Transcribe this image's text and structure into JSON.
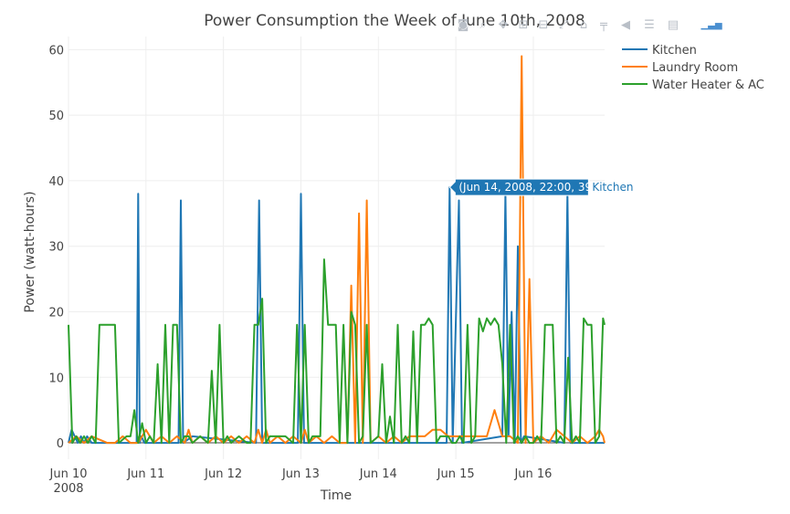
{
  "chart_data": {
    "type": "line",
    "title": "Power Consumption the Week of June 10th, 2008",
    "xlabel": "Time",
    "ylabel": "Power (watt-hours)",
    "ylim": [
      -2.5,
      62
    ],
    "yticks": [
      0,
      10,
      20,
      30,
      40,
      50,
      60
    ],
    "xlim": [
      0,
      6.92
    ],
    "xticks": [
      {
        "pos": 0,
        "label": "Jun 10",
        "sub": "2008"
      },
      {
        "pos": 1,
        "label": "Jun 11"
      },
      {
        "pos": 2,
        "label": "Jun 12"
      },
      {
        "pos": 3,
        "label": "Jun 13"
      },
      {
        "pos": 4,
        "label": "Jun 14"
      },
      {
        "pos": 5,
        "label": "Jun 15"
      },
      {
        "pos": 6,
        "label": "Jun 16"
      }
    ],
    "grid": true,
    "legend_position": "top-right",
    "series": [
      {
        "name": "Kitchen",
        "color": "#1f77b4",
        "x": [
          0,
          0.04,
          0.08,
          0.12,
          0.16,
          0.2,
          0.24,
          0.3,
          0.88,
          0.9,
          0.92,
          0.94,
          0.98,
          1.42,
          1.45,
          1.48,
          1.6,
          2.42,
          2.46,
          2.5,
          2.96,
          3.0,
          3.04,
          4.88,
          4.92,
          4.96,
          5.04,
          5.08,
          5.6,
          5.64,
          5.68,
          5.72,
          5.76,
          5.8,
          5.84,
          5.88,
          6.4,
          6.44,
          6.48,
          6.92
        ],
        "y": [
          0,
          2,
          1,
          0,
          1,
          0,
          1,
          0,
          0,
          38,
          0,
          1,
          0,
          0,
          37,
          0,
          1,
          0,
          37,
          0,
          0,
          38,
          0,
          0,
          39,
          0,
          37,
          0,
          1,
          38,
          1,
          20,
          0,
          30,
          0,
          1,
          0,
          38,
          0,
          0
        ]
      },
      {
        "name": "Laundry Room",
        "color": "#ff7f0e",
        "x": [
          0,
          0.1,
          0.2,
          0.3,
          0.5,
          0.6,
          0.7,
          0.8,
          0.9,
          1.0,
          1.1,
          1.2,
          1.3,
          1.4,
          1.5,
          1.55,
          1.6,
          1.7,
          1.8,
          1.9,
          2.0,
          2.1,
          2.2,
          2.3,
          2.4,
          2.45,
          2.5,
          2.55,
          2.6,
          2.7,
          2.8,
          2.9,
          3.0,
          3.05,
          3.1,
          3.2,
          3.3,
          3.4,
          3.5,
          3.6,
          3.65,
          3.7,
          3.75,
          3.8,
          3.85,
          3.9,
          4.0,
          4.1,
          4.2,
          4.3,
          4.4,
          4.5,
          4.6,
          4.7,
          4.8,
          4.9,
          5.0,
          5.1,
          5.2,
          5.3,
          5.4,
          5.5,
          5.6,
          5.7,
          5.8,
          5.85,
          5.9,
          5.95,
          6.0,
          6.1,
          6.2,
          6.3,
          6.4,
          6.5,
          6.6,
          6.7,
          6.8,
          6.85,
          6.9,
          6.92
        ],
        "y": [
          0,
          1,
          0,
          1,
          0,
          0,
          1,
          0,
          0,
          2,
          0,
          1,
          0,
          1,
          0,
          2,
          0,
          1,
          0,
          1,
          0,
          1,
          0,
          1,
          0,
          2,
          0,
          2,
          0,
          1,
          0,
          1,
          0,
          2,
          0,
          1,
          0,
          1,
          0,
          0,
          24,
          0,
          35,
          0,
          37,
          0,
          1,
          0,
          1,
          0,
          1,
          1,
          1,
          2,
          2,
          1,
          1,
          1,
          1,
          1,
          1,
          5,
          1,
          1,
          0,
          59,
          0,
          25,
          0,
          1,
          0,
          2,
          1,
          0,
          1,
          0,
          1,
          2,
          1,
          0
        ]
      },
      {
        "name": "Water Heater & AC",
        "color": "#2ca02c",
        "x": [
          0,
          0.05,
          0.1,
          0.15,
          0.2,
          0.25,
          0.3,
          0.35,
          0.4,
          0.5,
          0.6,
          0.65,
          0.75,
          0.8,
          0.85,
          0.9,
          0.95,
          1.0,
          1.05,
          1.1,
          1.15,
          1.2,
          1.25,
          1.3,
          1.35,
          1.4,
          1.45,
          1.5,
          1.55,
          1.6,
          1.7,
          1.8,
          1.85,
          1.9,
          1.95,
          2.0,
          2.05,
          2.1,
          2.2,
          2.3,
          2.35,
          2.4,
          2.45,
          2.5,
          2.55,
          2.6,
          2.65,
          2.7,
          2.8,
          2.9,
          2.95,
          3.0,
          3.05,
          3.1,
          3.15,
          3.2,
          3.25,
          3.3,
          3.35,
          3.4,
          3.45,
          3.5,
          3.55,
          3.6,
          3.65,
          3.7,
          3.75,
          3.8,
          3.85,
          3.9,
          4.0,
          4.05,
          4.1,
          4.15,
          4.2,
          4.25,
          4.3,
          4.35,
          4.4,
          4.45,
          4.5,
          4.55,
          4.6,
          4.65,
          4.7,
          4.75,
          4.8,
          4.85,
          4.9,
          4.95,
          5.0,
          5.05,
          5.1,
          5.15,
          5.2,
          5.25,
          5.3,
          5.35,
          5.4,
          5.45,
          5.5,
          5.55,
          5.6,
          5.65,
          5.7,
          5.75,
          5.8,
          5.85,
          5.9,
          5.95,
          6.0,
          6.05,
          6.1,
          6.15,
          6.2,
          6.25,
          6.3,
          6.35,
          6.4,
          6.45,
          6.5,
          6.55,
          6.6,
          6.65,
          6.7,
          6.75,
          6.8,
          6.85,
          6.9,
          6.92
        ],
        "y": [
          18,
          0,
          1,
          0,
          1,
          0,
          1,
          0,
          18,
          18,
          18,
          0,
          1,
          1,
          5,
          0,
          3,
          0,
          1,
          0,
          12,
          0,
          18,
          0,
          18,
          18,
          0,
          1,
          1,
          0,
          1,
          0,
          11,
          0,
          18,
          0,
          1,
          0,
          1,
          0,
          0,
          18,
          18,
          22,
          0,
          1,
          1,
          1,
          1,
          0,
          18,
          0,
          18,
          0,
          1,
          1,
          1,
          28,
          18,
          18,
          18,
          0,
          18,
          0,
          20,
          18,
          0,
          1,
          18,
          0,
          1,
          12,
          0,
          4,
          0,
          18,
          0,
          1,
          0,
          17,
          0,
          18,
          18,
          19,
          18,
          0,
          1,
          1,
          1,
          0,
          0,
          1,
          0,
          18,
          0,
          1,
          19,
          17,
          19,
          18,
          19,
          18,
          12,
          0,
          18,
          0,
          1,
          0,
          1,
          0,
          0,
          1,
          0,
          18,
          18,
          18,
          0,
          1,
          0,
          13,
          0,
          1,
          0,
          19,
          18,
          18,
          0,
          1,
          19,
          18
        ]
      }
    ],
    "hover": {
      "text": "(Jun 14, 2008, 22:00, 39)",
      "series": "Kitchen",
      "x": 4.92,
      "y": 39
    }
  },
  "modebar": {
    "buttons": [
      "camera-icon",
      "zoom-icon",
      "pan-icon",
      "zoom-in-icon",
      "zoom-out-icon",
      "autoscale-icon",
      "home-icon",
      "spike-icon",
      "hover-closest-icon",
      "hover-compare-icon",
      "edit-icon",
      "plotly-logo-icon"
    ]
  }
}
